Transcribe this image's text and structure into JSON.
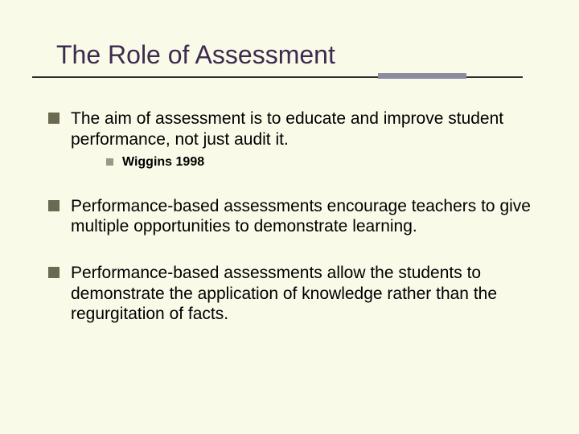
{
  "slide": {
    "title": "The Role of Assessment",
    "background_color": "#fafae8",
    "title_color": "#3d2b4f",
    "title_fontsize": 32,
    "rule": {
      "main_color": "#2b2b2b",
      "accent_color": "#8c8ca0"
    },
    "bullet_marker_color": "#6a6a52",
    "sub_marker_color": "#9a9a82",
    "body_fontsize": 21,
    "sub_fontsize": 16,
    "bullets": [
      {
        "text": "The aim of assessment is to educate and improve student performance, not just audit it.",
        "sub": [
          {
            "text": "Wiggins 1998"
          }
        ]
      },
      {
        "text": "Performance-based assessments encourage teachers to give multiple opportunities to demonstrate learning.",
        "sub": []
      },
      {
        "text": "Performance-based assessments allow the students to demonstrate the application of knowledge rather than the regurgitation of facts.",
        "sub": []
      }
    ]
  }
}
